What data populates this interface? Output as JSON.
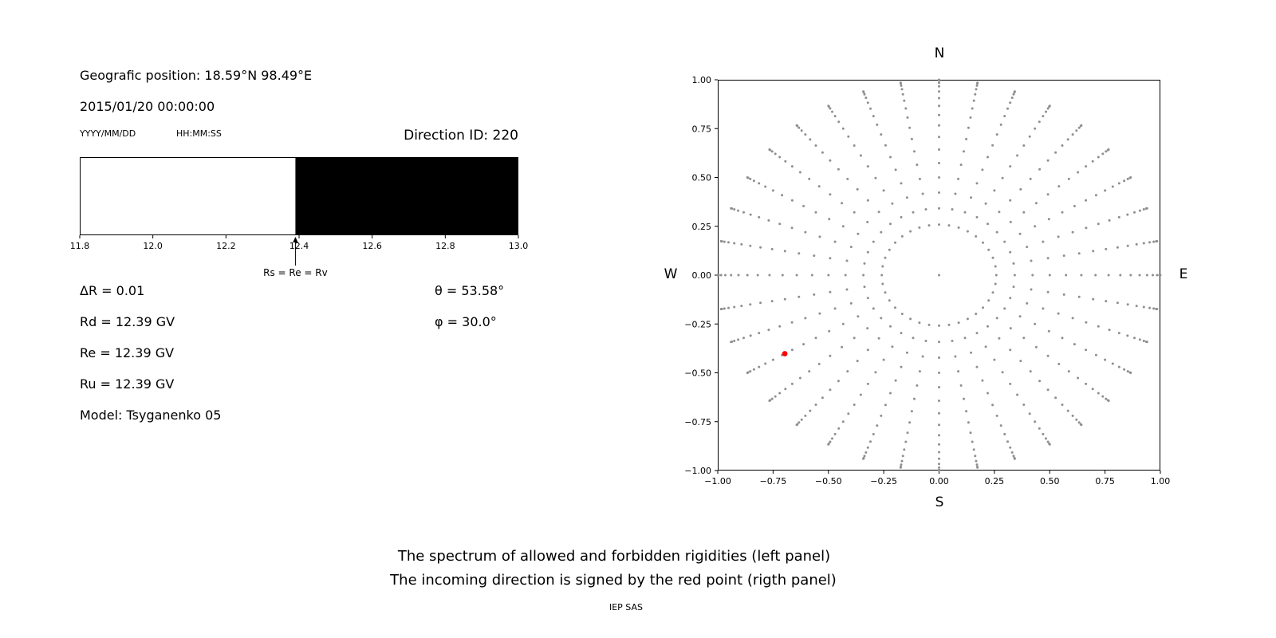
{
  "header": {
    "geo_position": "Geografic position: 18.59°N 98.49°E",
    "datetime": "2015/01/20 00:00:00",
    "date_format": "YYYY/MM/DD",
    "time_format": "HH:MM:SS",
    "direction_id": "Direction ID: 220"
  },
  "parameters": {
    "delta_r": "ΔR = 0.01",
    "rd": "Rd = 12.39 GV",
    "re": "Re = 12.39 GV",
    "ru": "Ru = 12.39 GV",
    "model": "Model: Tsyganenko 05",
    "theta": "θ = 53.58°",
    "phi": "φ = 30.0°"
  },
  "captions": {
    "line1": "The spectrum of allowed and forbidden rigidities (left panel)",
    "line2": "The incoming direction is signed by the red point (rigth panel)",
    "credit": "IEP SAS"
  },
  "chart_data": [
    {
      "id": "rigidity-spectrum",
      "type": "bar",
      "xlim": [
        11.8,
        13.0
      ],
      "xticks": [
        11.8,
        12.0,
        12.2,
        12.4,
        12.6,
        12.8,
        13.0
      ],
      "xtick_labels": [
        "11.8",
        "12.0",
        "12.2",
        "12.4",
        "12.6",
        "12.8",
        "13.0"
      ],
      "regions": [
        {
          "name": "allowed",
          "from": 11.8,
          "to": 12.39,
          "color": "#ffffff"
        },
        {
          "name": "forbidden",
          "from": 12.39,
          "to": 13.0,
          "color": "#000000"
        }
      ],
      "marker": {
        "x": 12.39,
        "label": "Rs = Re = Rv"
      },
      "frame_color": "#000000"
    },
    {
      "id": "direction-map",
      "type": "scatter",
      "xlim": [
        -1.0,
        1.0
      ],
      "ylim": [
        -1.0,
        1.0
      ],
      "xticks": [
        -1.0,
        -0.75,
        -0.5,
        -0.25,
        0.0,
        0.25,
        0.5,
        0.75,
        1.0
      ],
      "xtick_labels": [
        "−1.00",
        "−0.75",
        "−0.50",
        "−0.25",
        "0.00",
        "0.25",
        "0.50",
        "0.75",
        "1.00"
      ],
      "yticks": [
        -1.0,
        -0.75,
        -0.5,
        -0.25,
        0.0,
        0.25,
        0.5,
        0.75,
        1.0
      ],
      "ytick_labels": [
        "−1.00",
        "−0.75",
        "−0.50",
        "−0.25",
        "0.00",
        "0.25",
        "0.50",
        "0.75",
        "1.00"
      ],
      "compass": {
        "top": "N",
        "bottom": "S",
        "left": "W",
        "right": "E"
      },
      "direction_grid": {
        "azimuth_count": 36,
        "azimuth_step_deg": 10,
        "zenith_min_deg": 15,
        "zenith_max_deg": 90,
        "zenith_step_deg": 5,
        "radius_rule": "sin(zenith)",
        "dot_color": "#8f8f8f",
        "center_dot": true
      },
      "red_point": {
        "x": -0.697,
        "y": -0.402,
        "color": "#ff0000"
      }
    }
  ]
}
